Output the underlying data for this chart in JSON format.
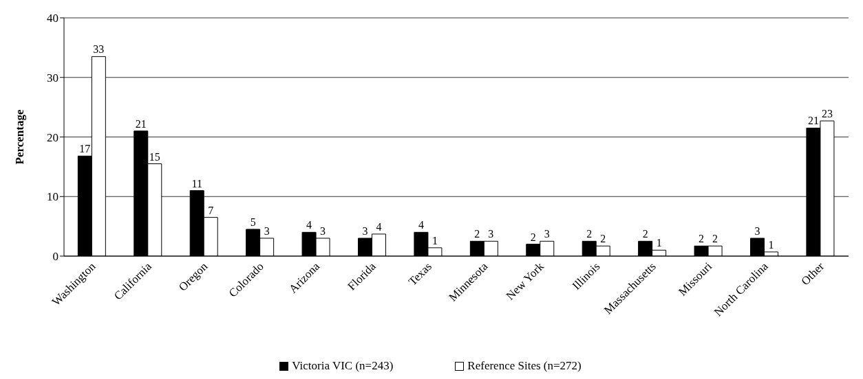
{
  "chart_data": {
    "type": "bar",
    "ylabel": "Percentage",
    "categories": [
      "Washington",
      "California",
      "Oregon",
      "Colorado",
      "Arizona",
      "Florida",
      "Texas",
      "Minnesota",
      "New York",
      "Illinois",
      "Massachusetts",
      "Missouri",
      "North Carolina",
      "Other"
    ],
    "series": [
      {
        "name": "Victoria VIC (n=243)",
        "color": "#000000",
        "values": [
          16.8,
          21,
          11,
          4.5,
          4,
          3,
          4,
          2.5,
          2,
          2.5,
          2.5,
          1.7,
          3,
          21.5
        ],
        "value_labels": [
          "17",
          "21",
          "11",
          "5",
          "4",
          "3",
          "4",
          "2",
          "2",
          "2",
          "2",
          "2",
          "3",
          "21"
        ]
      },
      {
        "name": "Reference Sites (n=272)",
        "color": "#ffffff",
        "values": [
          33.5,
          15.5,
          6.5,
          3,
          3,
          3.7,
          1.4,
          2.5,
          2.5,
          1.7,
          1,
          1.7,
          0.7,
          22.7
        ],
        "value_labels": [
          "33",
          "15",
          "7",
          "3",
          "3",
          "4",
          "1",
          "3",
          "3",
          "2",
          "1",
          "2",
          "1",
          "23"
        ]
      }
    ],
    "ylim": [
      0,
      40
    ],
    "yticks": [
      0,
      10,
      20,
      30,
      40
    ],
    "grid": "y",
    "legend": "bottom"
  }
}
